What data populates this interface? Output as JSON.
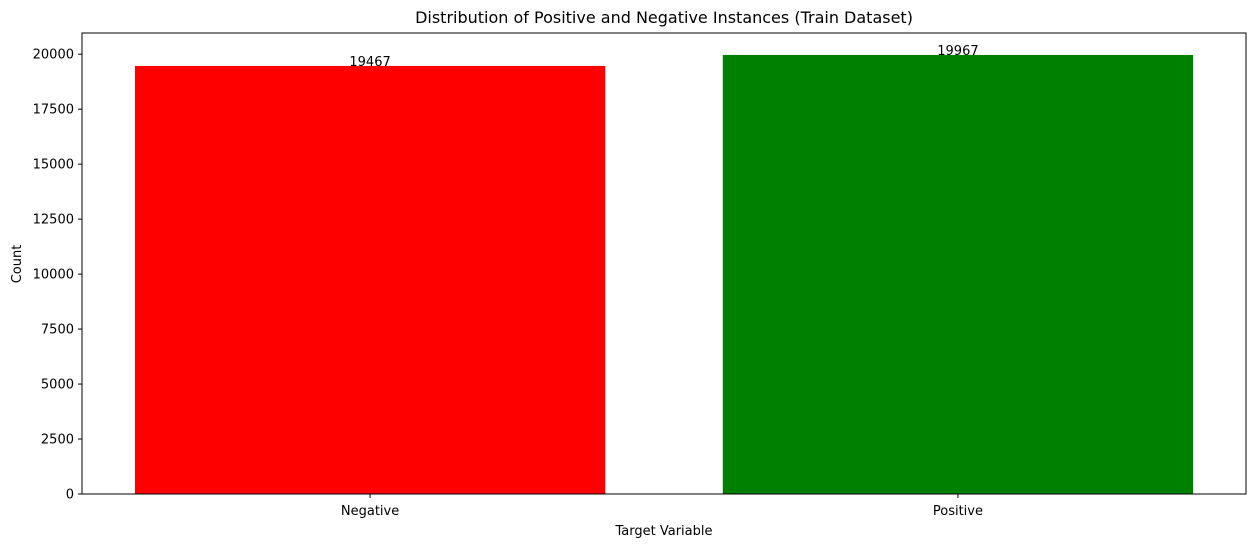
{
  "chart_data": {
    "type": "bar",
    "title": "Distribution of Positive and Negative Instances (Train Dataset)",
    "xlabel": "Target Variable",
    "ylabel": "Count",
    "categories": [
      "Negative",
      "Positive"
    ],
    "values": [
      19467,
      19967
    ],
    "data_labels": [
      "19467",
      "19967"
    ],
    "colors": [
      "#ff0000",
      "#008000"
    ],
    "ylim": [
      0,
      20965
    ],
    "yticks": [
      0,
      2500,
      5000,
      7500,
      10000,
      12500,
      15000,
      17500,
      20000
    ],
    "ytick_labels": [
      "0",
      "2500",
      "5000",
      "7500",
      "10000",
      "12500",
      "15000",
      "17500",
      "20000"
    ],
    "grid": false,
    "legend": "none"
  }
}
